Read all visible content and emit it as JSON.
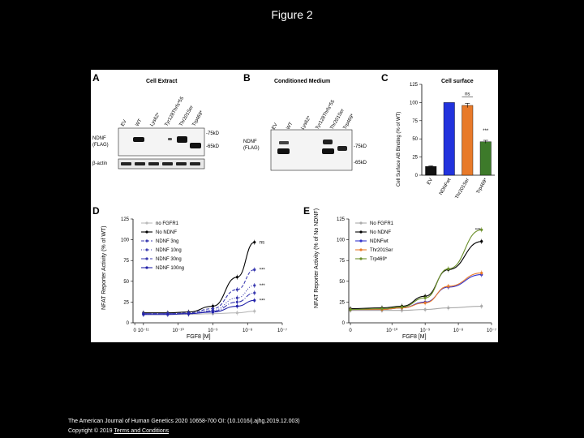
{
  "title": "Figure 2",
  "citation": "The American Journal of Human Genetics 2020 10658-700 OI: (10.1016/j.ajhg.2019.12.003)",
  "copyright": "Copyright © 2019",
  "terms_link": "Terms and Conditions",
  "panels": {
    "A": {
      "label": "A",
      "title": "Cell Extract",
      "lanes": [
        "EV",
        "WT",
        "Lys62*",
        "Tyr128Thrfs*55",
        "Thr201Ser",
        "Trp469*"
      ],
      "row_labels": [
        "NDNF",
        "(FLAG)",
        "β-actin"
      ],
      "markers": [
        "-75kD",
        "-65kD"
      ]
    },
    "B": {
      "label": "B",
      "title": "Conditioned Medium",
      "lanes": [
        "EV",
        "WT",
        "Lys62*",
        "Tyr128Thrfs*55",
        "Thr201Ser",
        "Trp469*"
      ],
      "row_labels": [
        "NDNF",
        "(FLAG)"
      ],
      "markers": [
        "-75kD",
        "-65kD"
      ]
    }
  },
  "chart_data": [
    {
      "panel": "C",
      "type": "bar",
      "title": "Cell surface",
      "ylabel": "Cell Surface AB Binding (% of WT)",
      "ylim": [
        0,
        125
      ],
      "yticks": [
        0,
        25,
        50,
        75,
        100,
        125
      ],
      "categories": [
        "EV",
        "NDNFwt",
        "Thr201Ser",
        "Trp469*"
      ],
      "values": [
        12,
        100,
        96,
        46
      ],
      "errors": [
        1,
        0,
        3,
        2
      ],
      "colors": [
        "#111111",
        "#2233dd",
        "#e87a2a",
        "#3d7a2a"
      ],
      "annotations": [
        {
          "category": "Thr201Ser",
          "text": "ns"
        },
        {
          "category": "Trp469*",
          "text": "***"
        }
      ]
    },
    {
      "panel": "D",
      "type": "line",
      "xlabel": "FGF8 [M]",
      "ylabel": "NFAT Reporter Activity (% of WT)",
      "xscale": "log",
      "xlim_log": [
        -11.3,
        -7
      ],
      "ylim": [
        0,
        125
      ],
      "yticks": [
        0,
        25,
        50,
        75,
        100,
        125
      ],
      "xtick_labels": [
        "0",
        "10⁻¹¹",
        "10⁻¹⁰",
        "10⁻⁹",
        "10⁻⁸",
        "10⁻⁷"
      ],
      "xticks_log": [
        -11.25,
        -11,
        -10,
        -9,
        -8,
        -7
      ],
      "x_log": [
        -11,
        -10.3,
        -9.7,
        -9,
        -8.3,
        -7.8
      ],
      "legend": [
        "no FGFR1",
        "No NDNF",
        "NDNF 3ng",
        "NDNF 10ng",
        "NDNF 30ng",
        "NDNF 100ng"
      ],
      "series": [
        {
          "name": "no FGFR1",
          "color": "#bbbbbb",
          "dash": "",
          "marker": "circle",
          "values": [
            10,
            10,
            10,
            11,
            12,
            14
          ]
        },
        {
          "name": "No NDNF",
          "color": "#000000",
          "dash": "",
          "marker": "circle",
          "values": [
            12,
            12,
            13,
            20,
            55,
            97
          ]
        },
        {
          "name": "NDNF 3ng",
          "color": "#3a3ab0",
          "dash": "4,2",
          "marker": "triangle",
          "values": [
            11,
            11,
            12,
            17,
            40,
            64
          ]
        },
        {
          "name": "NDNF 10ng",
          "color": "#3a3ab0",
          "dash": "1,2",
          "marker": "triangle",
          "values": [
            11,
            11,
            11,
            15,
            30,
            45
          ]
        },
        {
          "name": "NDNF 30ng",
          "color": "#3a3ab0",
          "dash": "6,2,1,2",
          "marker": "diamond",
          "values": [
            11,
            11,
            11,
            14,
            25,
            36
          ]
        },
        {
          "name": "NDNF 100ng",
          "color": "#2222aa",
          "dash": "",
          "marker": "circle",
          "values": [
            10,
            10,
            11,
            13,
            20,
            27
          ]
        }
      ],
      "annotations": [
        "ns",
        "***",
        "***",
        "***"
      ]
    },
    {
      "panel": "E",
      "type": "line",
      "xlabel": "FGF8 [M]",
      "ylabel": "NFAT Reporter Activity (% of No NDNF)",
      "xscale": "log",
      "xlim_log": [
        -11.3,
        -7
      ],
      "ylim": [
        0,
        125
      ],
      "yticks": [
        0,
        25,
        50,
        75,
        100,
        125
      ],
      "xtick_labels": [
        "0",
        "10⁻¹⁰",
        "10⁻⁹",
        "10⁻⁸",
        "10⁻⁷"
      ],
      "xticks_log": [
        -11.25,
        -10,
        -9,
        -8,
        -7
      ],
      "x_log": [
        -11.25,
        -10.3,
        -9.7,
        -9,
        -8.3,
        -7.3
      ],
      "legend": [
        "No FGFR1",
        "No NDNF",
        "NDNFwt",
        "Thr201Ser",
        "Trp469*"
      ],
      "series": [
        {
          "name": "No FGFR1",
          "color": "#aaaaaa",
          "dash": "",
          "marker": "circle",
          "values": [
            15,
            15,
            15,
            16,
            18,
            20
          ]
        },
        {
          "name": "No NDNF",
          "color": "#000000",
          "dash": "",
          "marker": "circle",
          "values": [
            17,
            18,
            20,
            32,
            64,
            98
          ]
        },
        {
          "name": "NDNFwt",
          "color": "#3333cc",
          "dash": "",
          "marker": "circle",
          "values": [
            16,
            16,
            18,
            25,
            43,
            58
          ]
        },
        {
          "name": "Thr201Ser",
          "color": "#e87a2a",
          "dash": "",
          "marker": "circle",
          "values": [
            16,
            16,
            18,
            24,
            44,
            60
          ]
        },
        {
          "name": "Trp469*",
          "color": "#6b8f2a",
          "dash": "",
          "marker": "circle",
          "values": [
            16,
            17,
            19,
            30,
            65,
            112
          ]
        }
      ],
      "annotations": [
        "***"
      ]
    }
  ]
}
